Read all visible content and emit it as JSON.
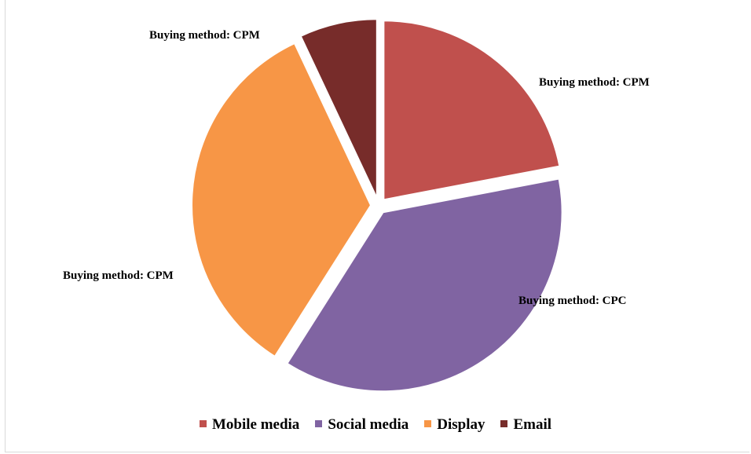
{
  "chart_data": {
    "type": "pie",
    "categories": [
      "Mobile media",
      "Social media",
      "Display",
      "Email"
    ],
    "values": [
      22,
      37,
      34,
      7
    ],
    "labels": [
      "Buying method: CPM",
      "Buying method: CPC",
      "Buying method: CPM",
      "Buying method: CPM"
    ],
    "colors": [
      "#c0504d",
      "#8064a2",
      "#f79646",
      "#772c2a"
    ],
    "legend": "bottom"
  }
}
